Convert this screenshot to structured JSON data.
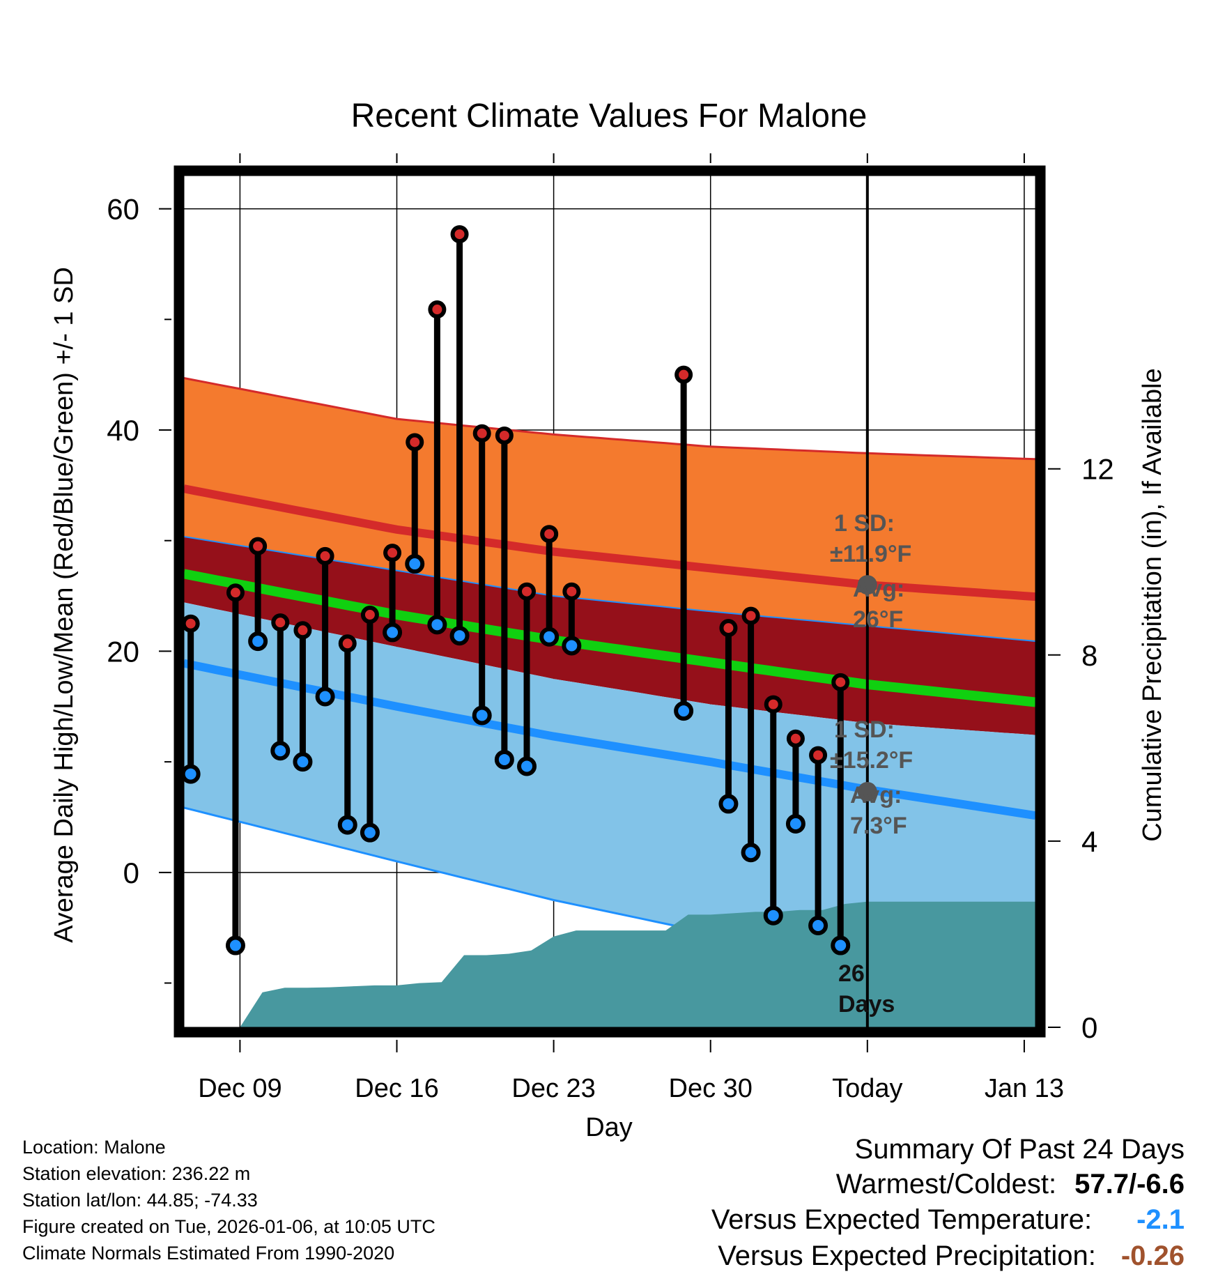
{
  "chart_data": {
    "type": "line",
    "title": "Recent Climate Values For Malone",
    "xlabel": "Day",
    "ylabel_left": "Average Daily High/Low/Mean (Red/Blue/Green) +/- 1 SD",
    "ylabel_right": "Cumulative Precipitation (in), If Available",
    "xlim": [
      6.5,
      44.5
    ],
    "ylim_left": [
      -14,
      63
    ],
    "ylim_right": [
      0,
      18.3
    ],
    "x_ticks": [
      {
        "day": 9,
        "label": "Dec 09"
      },
      {
        "day": 16,
        "label": "Dec 16"
      },
      {
        "day": 23,
        "label": "Dec 23"
      },
      {
        "day": 30,
        "label": "Dec 30"
      },
      {
        "day": 37,
        "label": "Today"
      },
      {
        "day": 44,
        "label": "Jan 13"
      }
    ],
    "y_ticks_left": [
      0,
      20,
      40,
      60
    ],
    "y_ticks_right": [
      0,
      4,
      8,
      12
    ],
    "today_day": 37,
    "normals": {
      "days": [
        7,
        16,
        23,
        30,
        37,
        44
      ],
      "high_mean": [
        34.5,
        31.0,
        29.0,
        27.5,
        26.0,
        25.0
      ],
      "high_plus_sd": [
        44.5,
        41.0,
        39.6,
        38.5,
        37.9,
        37.4
      ],
      "mean": [
        26.8,
        23.3,
        21.0,
        19.0,
        17.0,
        15.5
      ],
      "low_mean": [
        18.7,
        15.0,
        12.3,
        10.0,
        7.5,
        5.3
      ],
      "low_minus_sd": [
        5.6,
        1.0,
        -2.5,
        -5.5,
        -8.3,
        -10.2
      ],
      "high_minus_sd": [
        30.2,
        27.3,
        25.0,
        23.6,
        22.3,
        21.0
      ],
      "low_plus_sd": [
        24.2,
        20.4,
        17.5,
        15.2,
        13.5,
        12.5
      ]
    },
    "series": [
      {
        "name": "High",
        "days": [
          6.8,
          8.8,
          9.8,
          10.8,
          11.8,
          12.8,
          13.8,
          14.8,
          15.8,
          16.8,
          17.8,
          18.8,
          19.8,
          20.8,
          21.8,
          22.8,
          23.8,
          28.8,
          30.8,
          31.8,
          32.8,
          33.8,
          34.8,
          35.8
        ],
        "values": [
          22.5,
          25.3,
          29.5,
          22.6,
          21.9,
          28.6,
          20.7,
          23.3,
          28.9,
          38.9,
          50.9,
          57.7,
          39.7,
          39.5,
          25.4,
          30.6,
          25.4,
          45.0,
          22.1,
          23.2,
          15.2,
          12.1,
          10.6,
          17.2
        ]
      },
      {
        "name": "Low",
        "days": [
          6.8,
          8.8,
          9.8,
          10.8,
          11.8,
          12.8,
          13.8,
          14.8,
          15.8,
          16.8,
          17.8,
          18.8,
          19.8,
          20.8,
          21.8,
          22.8,
          23.8,
          28.8,
          30.8,
          31.8,
          32.8,
          33.8,
          34.8,
          35.8
        ],
        "values": [
          8.9,
          -6.6,
          20.9,
          11.0,
          10.0,
          15.9,
          4.3,
          3.6,
          21.7,
          27.9,
          22.4,
          21.4,
          14.2,
          10.2,
          9.6,
          21.3,
          20.5,
          14.6,
          6.2,
          1.8,
          -3.9,
          4.4,
          -4.8,
          -6.6
        ]
      }
    ],
    "precipitation": {
      "days": [
        9,
        10,
        11,
        12,
        13,
        14,
        15,
        16,
        17,
        18,
        19,
        20,
        21,
        22,
        23,
        24,
        25,
        26,
        27,
        28,
        29,
        30,
        31,
        32,
        33,
        34,
        35,
        36,
        37,
        44.5
      ],
      "values": [
        0,
        0.75,
        0.85,
        0.85,
        0.86,
        0.88,
        0.9,
        0.9,
        0.95,
        0.97,
        1.55,
        1.55,
        1.58,
        1.65,
        1.95,
        2.08,
        2.08,
        2.08,
        2.08,
        2.08,
        2.42,
        2.42,
        2.45,
        2.48,
        2.48,
        2.52,
        2.52,
        2.65,
        2.7,
        2.7
      ]
    },
    "annotations": {
      "high_sd": "1 SD:",
      "high_sd_value": "±11.9°F",
      "high_avg": "Avg:",
      "high_avg_value": "26°F",
      "low_sd": "1 SD:",
      "low_sd_value": "±15.2°F",
      "low_avg": "Avg:",
      "low_avg_value": "7.3°F",
      "days_count": "26",
      "days_label": "Days",
      "high_avg_marker": 26,
      "low_avg_marker": 7.3
    },
    "colors": {
      "high_band": "#f47a2e",
      "high_line": "#d42a2a",
      "mean_band": "#95101a",
      "mean_line": "#10d010",
      "low_band": "#82c3e8",
      "low_line": "#1e90ff",
      "precip": "#48989f",
      "high_dot": "#d42a2a",
      "low_dot": "#1e90ff",
      "annotation": "#555555"
    }
  },
  "footer": {
    "location": "Location: Malone",
    "elevation": "Station elevation: 236.22 m",
    "latlon": "Station lat/lon: 44.85; -74.33",
    "created": "Figure created on Tue, 2026-01-06, at 10:05 UTC",
    "normals": "Climate Normals Estimated From 1990-2020"
  },
  "summary": {
    "title": "Summary Of Past 24 Days",
    "warm_cold_label": "Warmest/Coldest:",
    "warm_cold_value": "57.7/-6.6",
    "temp_label": "Versus Expected Temperature:",
    "temp_value": "-2.1",
    "temp_color": "#1e90ff",
    "precip_label": "Versus Expected Precipitation:",
    "precip_value": "-0.26",
    "precip_color": "#a0522d"
  }
}
